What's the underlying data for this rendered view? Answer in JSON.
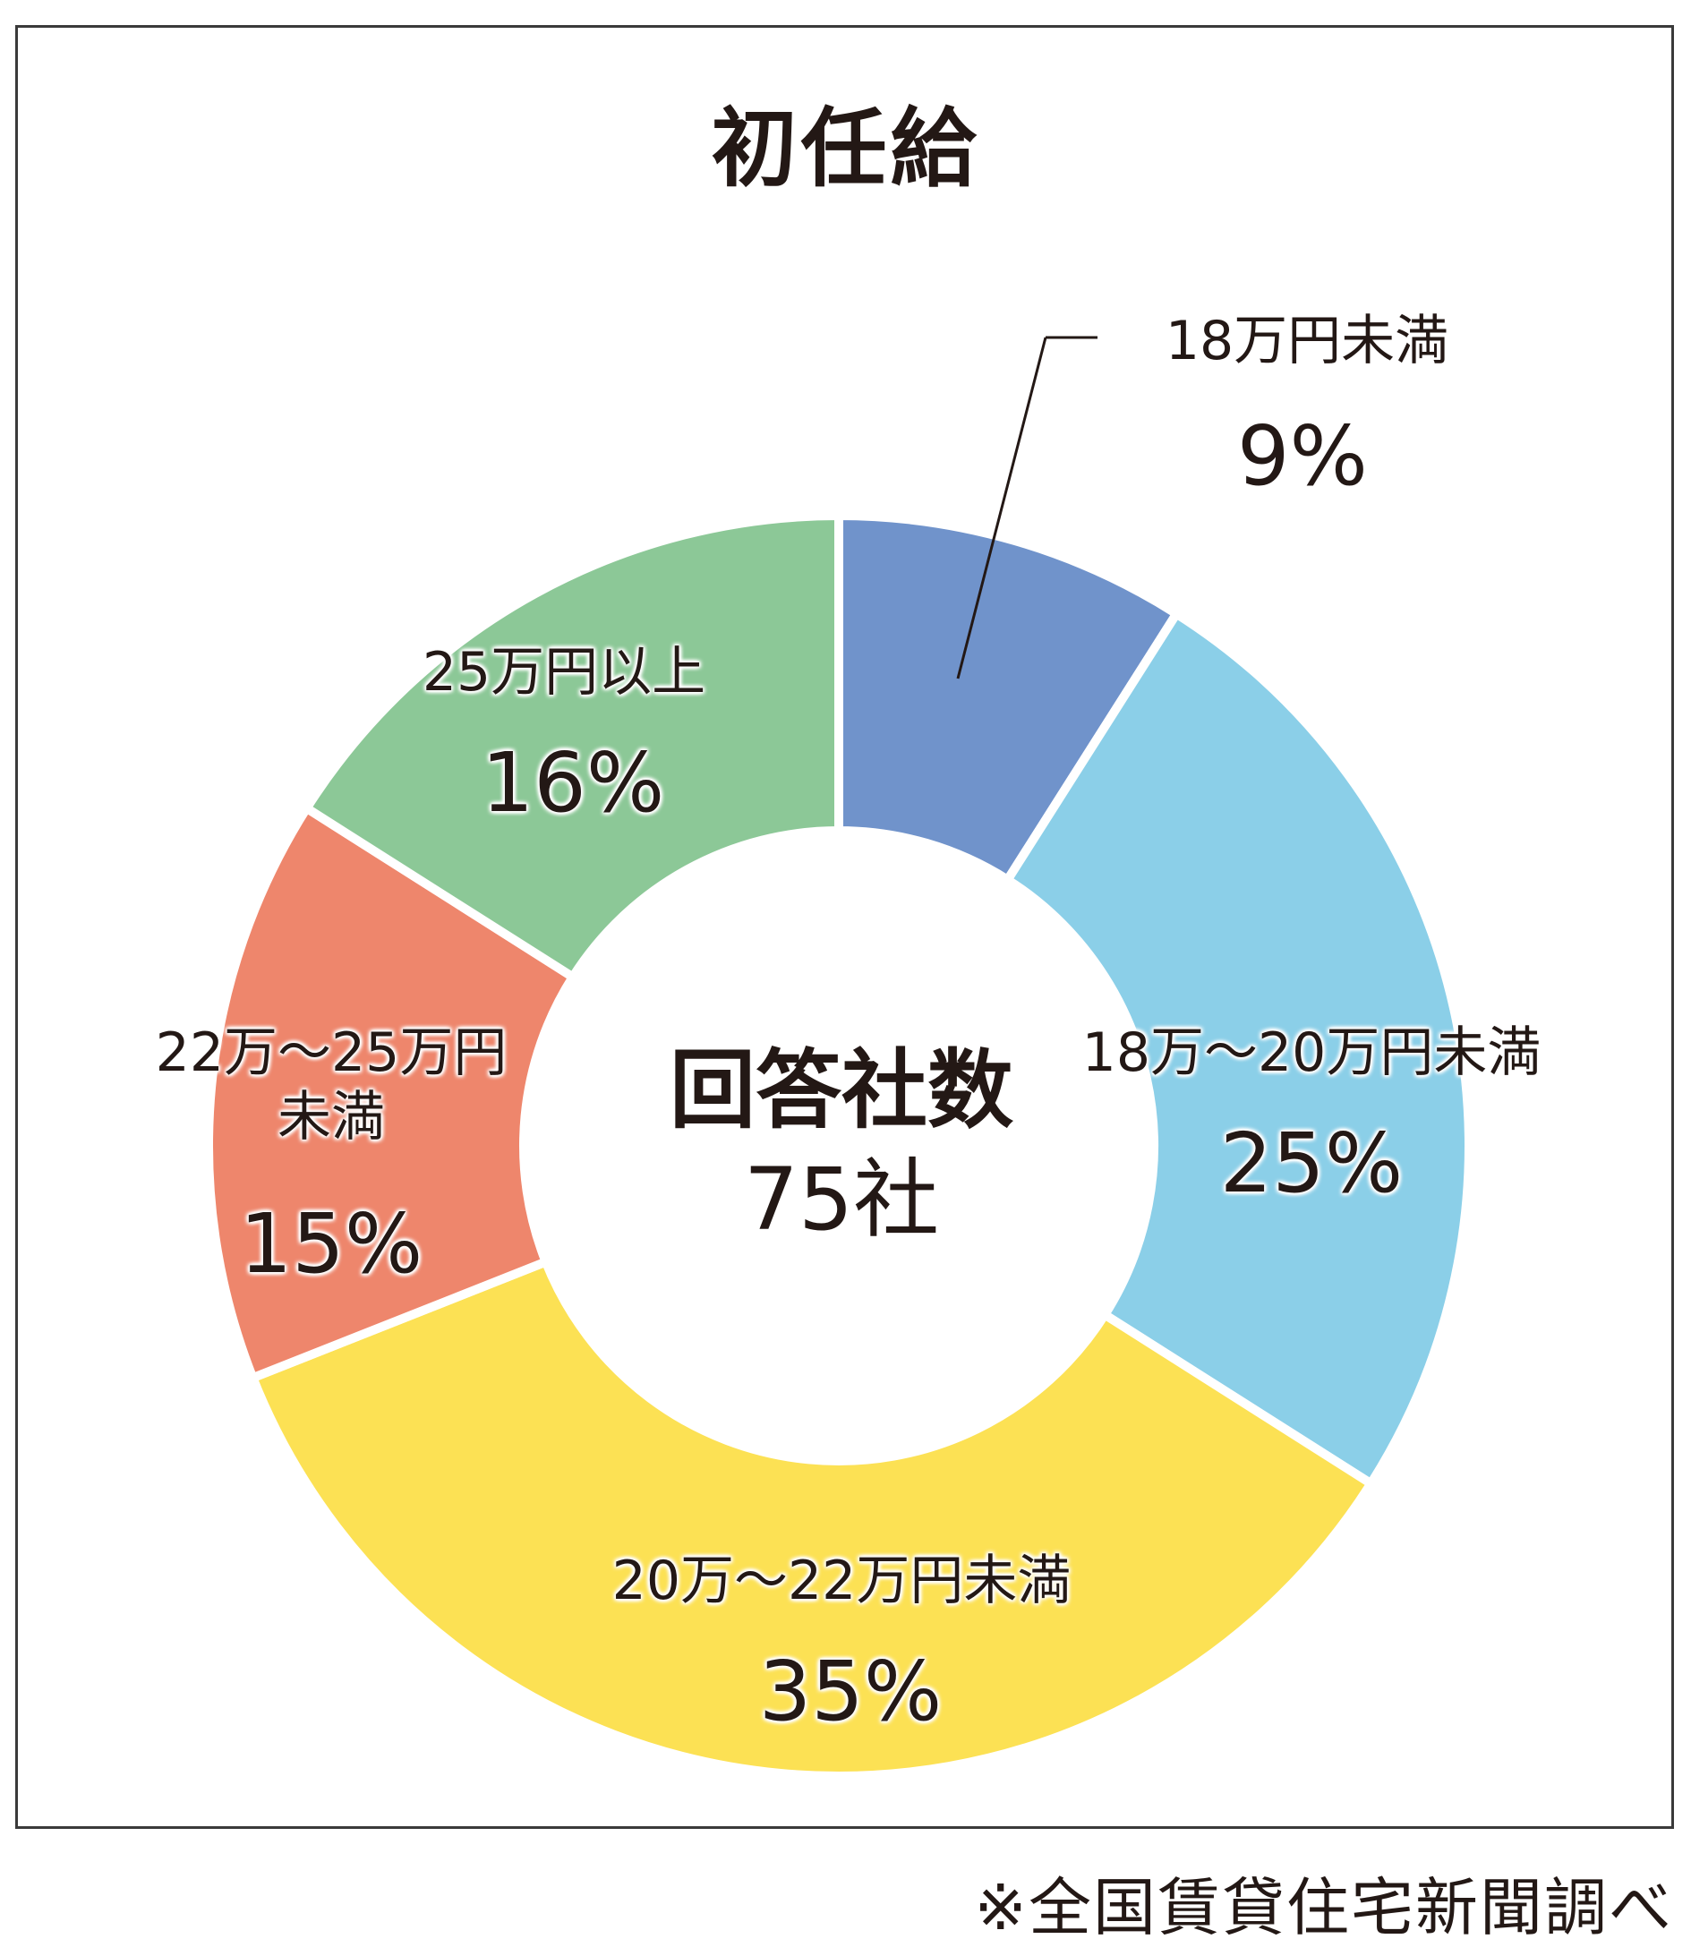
{
  "chart_data": {
    "type": "pie",
    "variant": "donut",
    "title": "初任給",
    "center_label": "回答社数",
    "center_value": "75社",
    "start_angle_deg": 0,
    "direction": "clockwise",
    "slices": [
      {
        "label": "18万円未満",
        "value": 9,
        "value_label": "9%",
        "color": "#7093CB"
      },
      {
        "label": "18万～20万円未満",
        "value": 25,
        "value_label": "25%",
        "color": "#8BCFE8"
      },
      {
        "label": "20万～22万円未満",
        "value": 35,
        "value_label": "35%",
        "color": "#FCE154"
      },
      {
        "label": "22万～25万円\n未満",
        "value": 15,
        "value_label": "15%",
        "color": "#EE866C"
      },
      {
        "label": "25万円以上",
        "value": 16,
        "value_label": "16%",
        "color": "#8CC897"
      }
    ]
  },
  "source_note": "※全国賃貸住宅新聞調べ"
}
